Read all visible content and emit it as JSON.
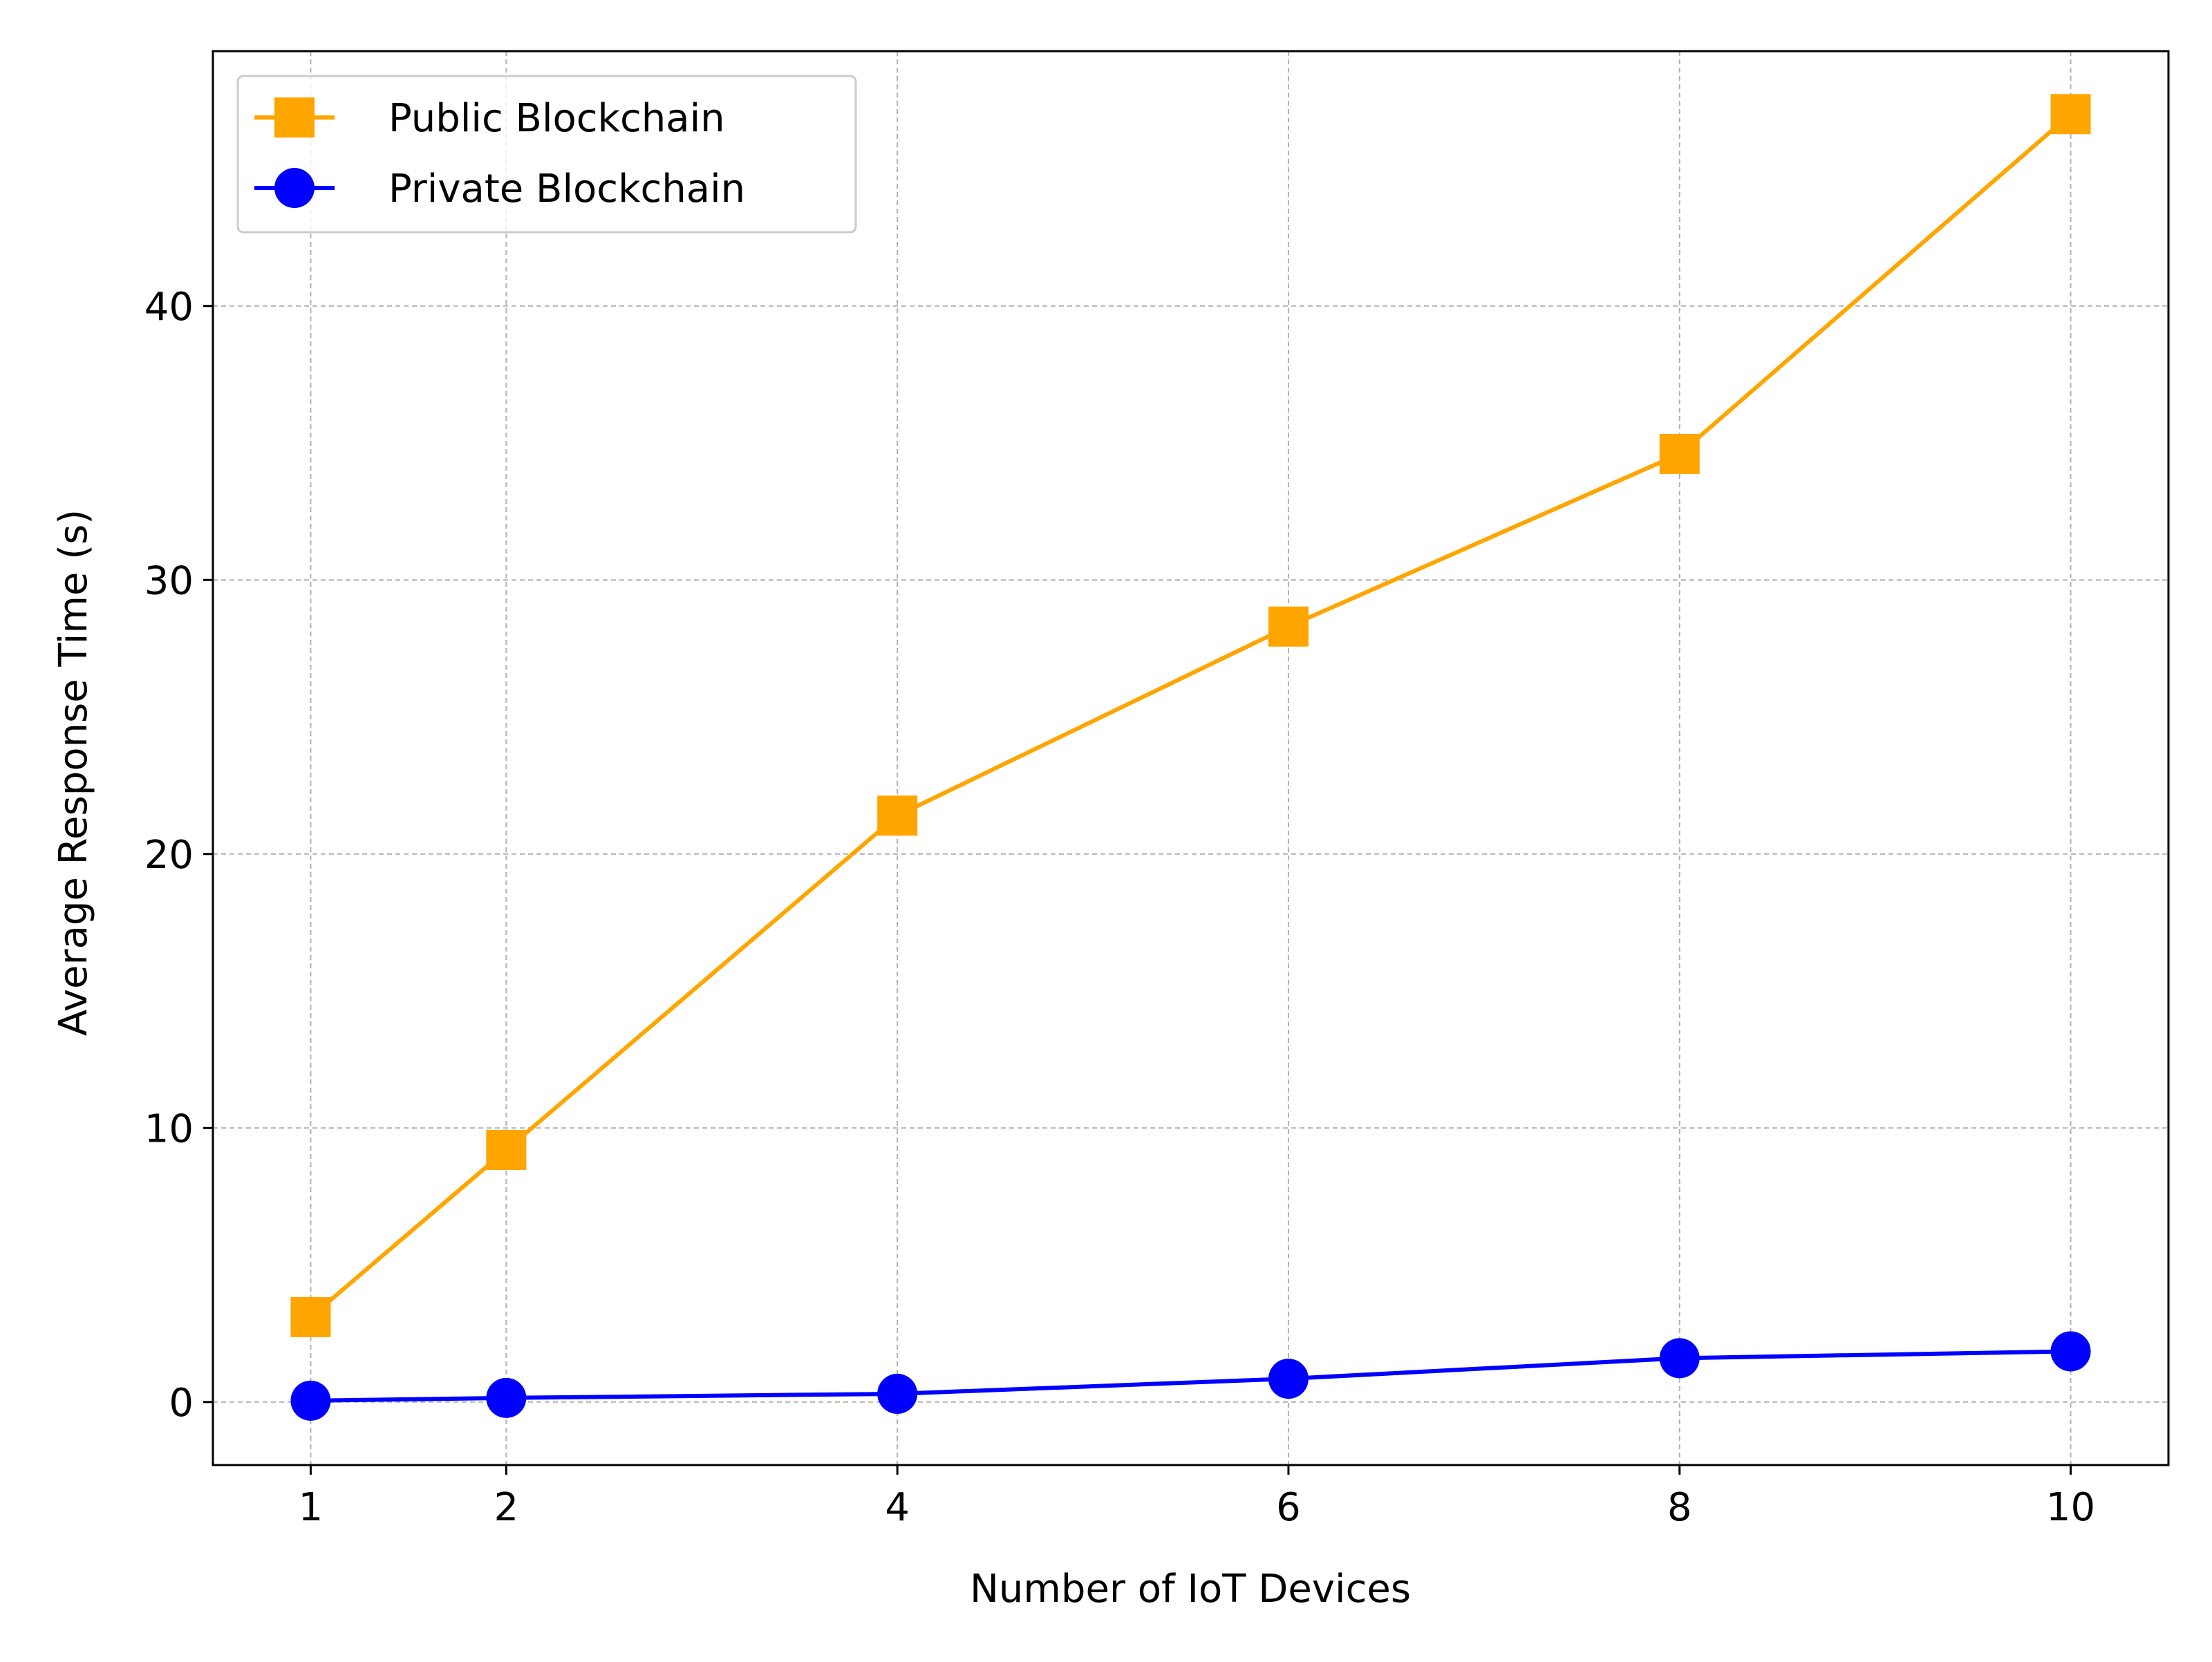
{
  "chart_data": {
    "type": "line",
    "title": "",
    "xlabel": "Number of IoT Devices",
    "ylabel": "Average Response Time (s)",
    "x": [
      1,
      2,
      4,
      6,
      8,
      10
    ],
    "x_ticks": [
      "1",
      "2",
      "4",
      "6",
      "8",
      "10"
    ],
    "y_ticks": [
      0,
      10,
      20,
      30,
      40
    ],
    "xlim": [
      0.5,
      10.5
    ],
    "ylim": [
      -2.3,
      49.3
    ],
    "grid": true,
    "legend_position": "upper left",
    "series": [
      {
        "name": "Public Blockchain",
        "values": [
          3.1,
          9.2,
          21.4,
          28.3,
          34.6,
          47.0
        ],
        "color": "#ffa500",
        "marker": "square"
      },
      {
        "name": "Private Blockchain",
        "values": [
          0.05,
          0.15,
          0.3,
          0.85,
          1.6,
          1.85
        ],
        "color": "#0000ff",
        "marker": "circle"
      }
    ]
  }
}
